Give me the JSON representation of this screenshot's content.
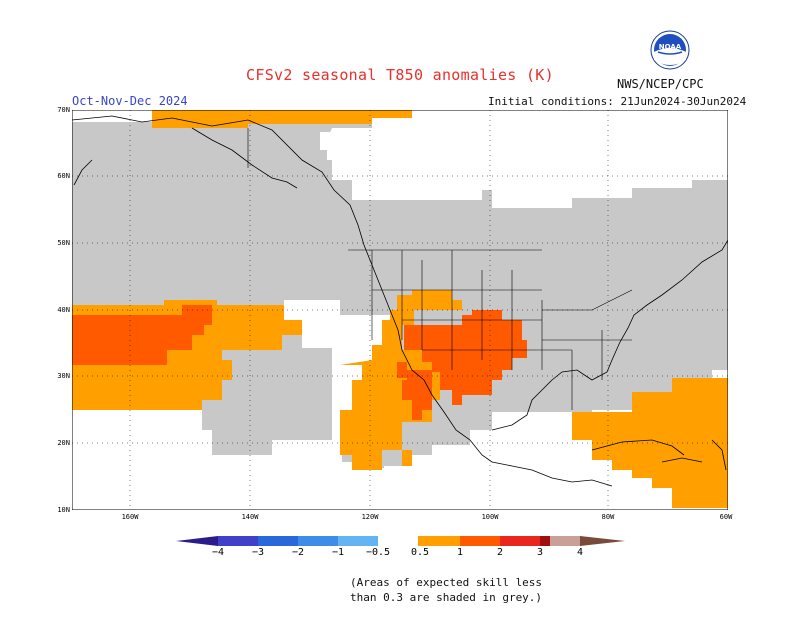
{
  "header": {
    "title": "CFSv2 seasonal T850 anomalies (K)",
    "period": "Oct-Nov-Dec 2024",
    "initial_conditions": "Initial conditions: 21Jun2024-30Jun2024",
    "agency": "NWS/NCEP/CPC",
    "logo_text": "NOAA"
  },
  "map": {
    "lat_labels": [
      "70N",
      "60N",
      "50N",
      "40N",
      "30N",
      "20N",
      "10N"
    ],
    "lon_labels": [
      "160W",
      "140W",
      "120W",
      "100W",
      "80W",
      "60W"
    ],
    "skill_mask_color": "#c8c8c8",
    "land_outline_color": "#000000"
  },
  "legend": {
    "tick_labels": [
      "−4",
      "−3",
      "−2",
      "−1",
      "−0.5",
      "0.5",
      "1",
      "2",
      "3",
      "4"
    ],
    "colors": {
      "below_m4": "#2a1c8c",
      "m4_m3": "#4040c8",
      "m3_m2": "#2868d8",
      "m2_m1": "#3c8ce8",
      "m1_m05": "#64b4f4",
      "neutral": "#ffffff",
      "p05_p1": "#ffa000",
      "p1_p2": "#ff5a00",
      "p2_p3": "#e8281e",
      "p3_p4": "#a01010",
      "p4_p5": "#c8a098",
      "above_p4": "#7a4a3a"
    }
  },
  "note": "(Areas of expected skill less\nthan 0.3 are shaded in grey.)"
}
